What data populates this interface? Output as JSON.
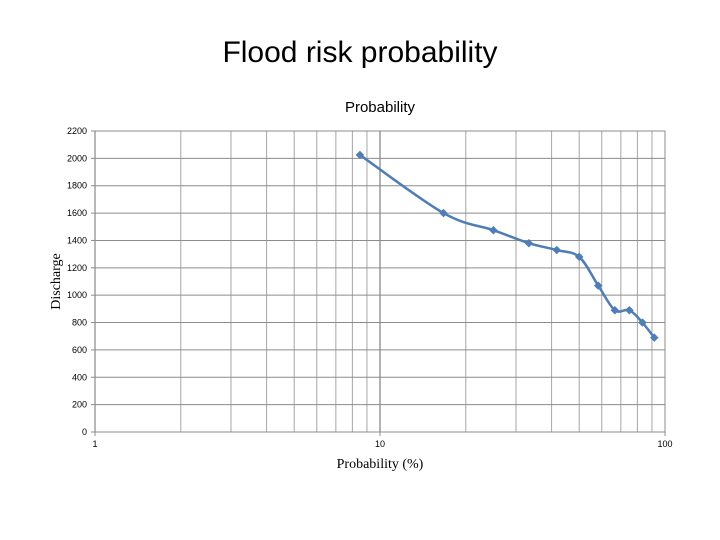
{
  "slide": {
    "title": "Flood risk probability"
  },
  "chart_data": {
    "type": "line",
    "title": "Probability",
    "xlabel": "Probability (%)",
    "ylabel": "Discharge",
    "x_scale": "log",
    "xlim": [
      1,
      100
    ],
    "ylim": [
      0,
      2200
    ],
    "x_ticks": [
      1,
      10,
      100
    ],
    "y_ticks": [
      0,
      200,
      400,
      600,
      800,
      1000,
      1200,
      1400,
      1600,
      1800,
      2000,
      2200
    ],
    "grid": true,
    "legend": "none",
    "series": [
      {
        "color": "#4F7DB6",
        "marker": "diamond",
        "x": [
          8.5,
          16.7,
          25,
          33.3,
          41.7,
          50,
          58.3,
          66.7,
          75,
          83.3,
          91.7
        ],
        "y": [
          2025,
          1600,
          1475,
          1380,
          1330,
          1280,
          1070,
          890,
          890,
          800,
          690
        ]
      }
    ]
  }
}
